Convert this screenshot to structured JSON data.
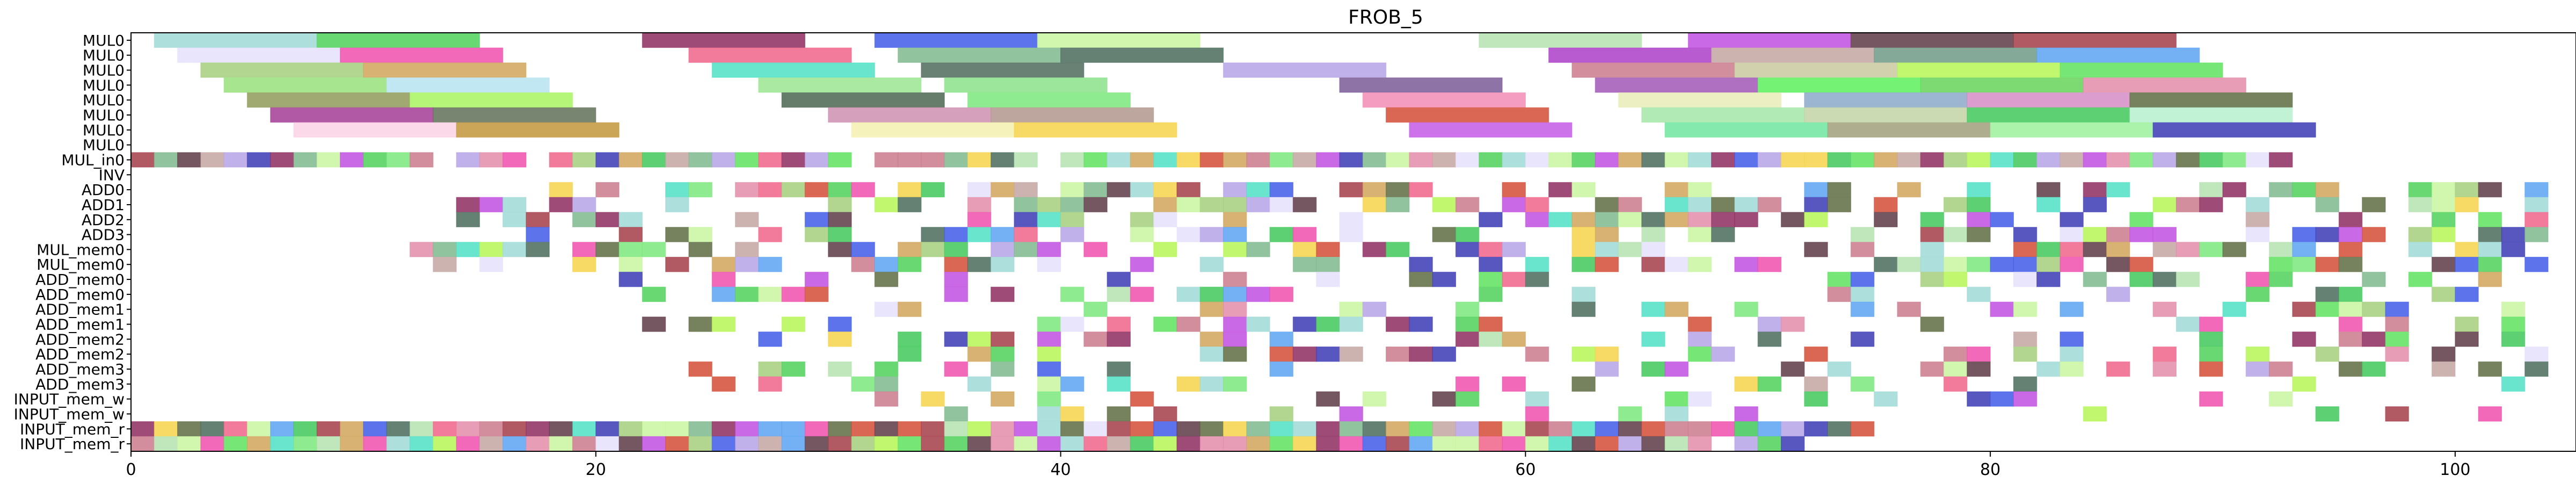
{
  "chart_data": {
    "type": "gantt",
    "title": "FROB_5",
    "xlabel": "",
    "ylabel": "",
    "xlim": [
      0,
      105.2
    ],
    "xticks": [
      0,
      20,
      40,
      60,
      80,
      100
    ],
    "grid": false,
    "legend": "none",
    "rows": [
      "MUL0",
      "MUL0",
      "MUL0",
      "MUL0",
      "MUL0",
      "MUL0",
      "MUL0",
      "MUL0",
      "MUL_in0",
      "INV",
      "ADD0",
      "ADD1",
      "ADD2",
      "ADD3",
      "MUL_mem0",
      "MUL_mem0",
      "ADD_mem0",
      "ADD_mem0",
      "ADD_mem1",
      "ADD_mem1",
      "ADD_mem2",
      "ADD_mem2",
      "ADD_mem3",
      "ADD_mem3",
      "INPUT_mem_w",
      "INPUT_mem_w",
      "INPUT_mem_r",
      "INPUT_mem_r"
    ],
    "bars": [
      {
        "row": 0,
        "start": 1,
        "end": 8,
        "color": "#9fd9d6"
      },
      {
        "row": 0,
        "start": 8,
        "end": 15,
        "color": "#4fd15a"
      },
      {
        "row": 0,
        "start": 22,
        "end": 29,
        "color": "#8e2b5f"
      },
      {
        "row": 0,
        "start": 32,
        "end": 39,
        "color": "#3f5be8"
      },
      {
        "row": 0,
        "start": 39,
        "end": 46,
        "color": "#c9f5a0"
      },
      {
        "row": 0,
        "start": 58,
        "end": 65,
        "color": "#b5e3b0"
      },
      {
        "row": 0,
        "start": 67,
        "end": 74,
        "color": "#c14fe0"
      },
      {
        "row": 0,
        "start": 74,
        "end": 81,
        "color": "#5c3a45"
      },
      {
        "row": 0,
        "start": 81,
        "end": 88,
        "color": "#a43d49"
      },
      {
        "row": 1,
        "start": 2,
        "end": 9,
        "color": "#e5e1fb"
      },
      {
        "row": 1,
        "start": 9,
        "end": 16,
        "color": "#ee4fab"
      },
      {
        "row": 1,
        "start": 24,
        "end": 31,
        "color": "#f0648a"
      },
      {
        "row": 1,
        "start": 33,
        "end": 40,
        "color": "#7fb88e"
      },
      {
        "row": 1,
        "start": 40,
        "end": 47,
        "color": "#4a6b5c"
      },
      {
        "row": 1,
        "start": 61,
        "end": 68,
        "color": "#ad3ec8"
      },
      {
        "row": 1,
        "start": 68,
        "end": 75,
        "color": "#c4a6a2"
      },
      {
        "row": 1,
        "start": 75,
        "end": 82,
        "color": "#6f9a86"
      },
      {
        "row": 1,
        "start": 82,
        "end": 89,
        "color": "#5aa3f2"
      },
      {
        "row": 2,
        "start": 3,
        "end": 10,
        "color": "#a4cf7c"
      },
      {
        "row": 2,
        "start": 10,
        "end": 17,
        "color": "#d1a45a"
      },
      {
        "row": 2,
        "start": 25,
        "end": 32,
        "color": "#4fe0c5"
      },
      {
        "row": 2,
        "start": 34,
        "end": 41,
        "color": "#4e6b5c"
      },
      {
        "row": 2,
        "start": 47,
        "end": 54,
        "color": "#b6a3e6"
      },
      {
        "row": 2,
        "start": 62,
        "end": 69,
        "color": "#ca7a8c"
      },
      {
        "row": 2,
        "start": 69,
        "end": 76,
        "color": "#c9c9a0"
      },
      {
        "row": 2,
        "start": 76,
        "end": 83,
        "color": "#b6f556"
      },
      {
        "row": 2,
        "start": 83,
        "end": 90,
        "color": "#5ee25e"
      },
      {
        "row": 3,
        "start": 4,
        "end": 11,
        "color": "#98e07a"
      },
      {
        "row": 3,
        "start": 11,
        "end": 18,
        "color": "#b6e4f0"
      },
      {
        "row": 3,
        "start": 27,
        "end": 34,
        "color": "#9ae592"
      },
      {
        "row": 3,
        "start": 35,
        "end": 42,
        "color": "#8ae28a"
      },
      {
        "row": 3,
        "start": 52,
        "end": 59,
        "color": "#7a5a96"
      },
      {
        "row": 3,
        "start": 63,
        "end": 70,
        "color": "#a157b6"
      },
      {
        "row": 3,
        "start": 70,
        "end": 77,
        "color": "#5cf05c"
      },
      {
        "row": 3,
        "start": 77,
        "end": 84,
        "color": "#66d35a"
      },
      {
        "row": 3,
        "start": 84,
        "end": 91,
        "color": "#e28ca8"
      },
      {
        "row": 4,
        "start": 5,
        "end": 12,
        "color": "#8f9a58"
      },
      {
        "row": 4,
        "start": 12,
        "end": 19,
        "color": "#a8f560"
      },
      {
        "row": 4,
        "start": 28,
        "end": 35,
        "color": "#4a6650"
      },
      {
        "row": 4,
        "start": 36,
        "end": 43,
        "color": "#7be87b"
      },
      {
        "row": 4,
        "start": 53,
        "end": 60,
        "color": "#f28cb5"
      },
      {
        "row": 4,
        "start": 64,
        "end": 71,
        "color": "#e8ecb6"
      },
      {
        "row": 4,
        "start": 72,
        "end": 79,
        "color": "#8ba8c8"
      },
      {
        "row": 4,
        "start": 79,
        "end": 86,
        "color": "#d48cc4"
      },
      {
        "row": 4,
        "start": 86,
        "end": 93,
        "color": "#5e6b42"
      },
      {
        "row": 5,
        "start": 6,
        "end": 13,
        "color": "#a33c95"
      },
      {
        "row": 5,
        "start": 13,
        "end": 20,
        "color": "#5f7058"
      },
      {
        "row": 5,
        "start": 30,
        "end": 37,
        "color": "#cc8fb0"
      },
      {
        "row": 5,
        "start": 37,
        "end": 44,
        "color": "#b0978c"
      },
      {
        "row": 5,
        "start": 54,
        "end": 61,
        "color": "#d44c35"
      },
      {
        "row": 5,
        "start": 65,
        "end": 72,
        "color": "#a4e6a8"
      },
      {
        "row": 5,
        "start": 72,
        "end": 79,
        "color": "#c2d4a4"
      },
      {
        "row": 5,
        "start": 79,
        "end": 86,
        "color": "#40c85a"
      },
      {
        "row": 5,
        "start": 86,
        "end": 93,
        "color": "#b6f0cf"
      },
      {
        "row": 6,
        "start": 7,
        "end": 14,
        "color": "#fad2e5"
      },
      {
        "row": 6,
        "start": 14,
        "end": 21,
        "color": "#c3963b"
      },
      {
        "row": 6,
        "start": 31,
        "end": 38,
        "color": "#f4f0b0"
      },
      {
        "row": 6,
        "start": 38,
        "end": 45,
        "color": "#f5d34a"
      },
      {
        "row": 6,
        "start": 55,
        "end": 62,
        "color": "#c45be6"
      },
      {
        "row": 6,
        "start": 66,
        "end": 73,
        "color": "#6fe59f"
      },
      {
        "row": 6,
        "start": 73,
        "end": 80,
        "color": "#a0a07a"
      },
      {
        "row": 6,
        "start": 80,
        "end": 87,
        "color": "#9cf09c"
      },
      {
        "row": 6,
        "start": 87,
        "end": 94,
        "color": "#3a3ab4"
      }
    ]
  }
}
